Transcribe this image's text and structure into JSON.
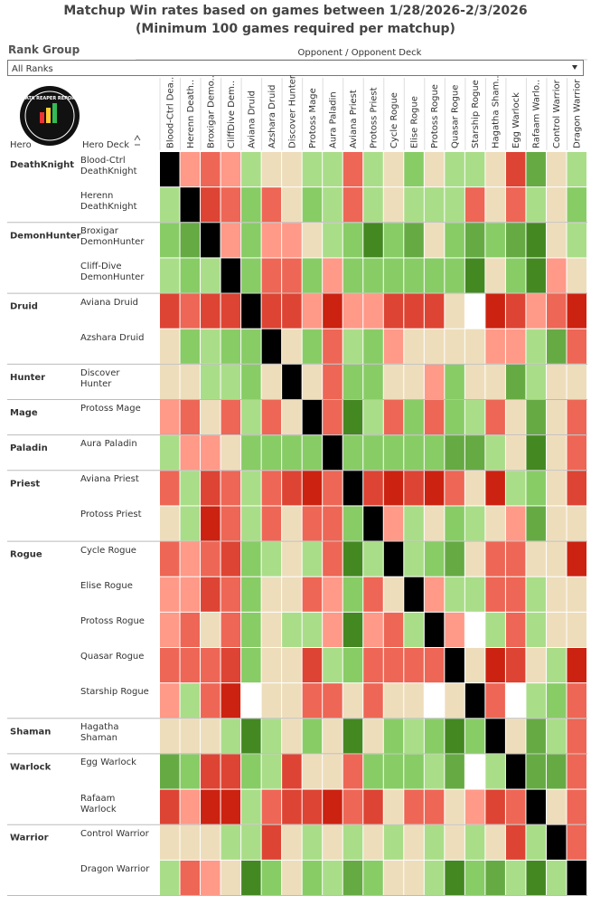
{
  "chart_data": {
    "type": "heatmap",
    "title": "Matchup Win rates based on games between 1/28/2026-2/3/2026",
    "subtitle": "(Minimum 100 games required per matchup)",
    "filter_label": "Rank Group",
    "filter_value": "All Ranks",
    "column_title": "Opponent / Opponent Deck",
    "row_header_hero": "Hero",
    "row_header_deck": "Hero Deck",
    "logo_text": "DATA REAPER REPORT",
    "columns": [
      "Blood-Ctrl Dea..",
      "Herenn Death..",
      "Broxigar Demo..",
      "CliffDive Dem..",
      "Aviana Druid",
      "Azshara Druid",
      "Discover Hunter",
      "Protoss Mage",
      "Aura Paladin",
      "Aviana Priest",
      "Protoss Priest",
      "Cycle Rogue",
      "Elise Rogue",
      "Protoss Rogue",
      "Quasar Rogue",
      "Starship Rogue",
      "Hagatha Sham..",
      "Egg Warlock",
      "Rafaam Warlo..",
      "Control Warrior",
      "Dragon Warrior"
    ],
    "groups": [
      {
        "hero": "DeathKnight",
        "decks": [
          "Blood-Ctrl DeathKnight",
          "Herenn DeathKnight"
        ]
      },
      {
        "hero": "DemonHunter",
        "decks": [
          "Broxigar DemonHunter",
          "Cliff-Dive DemonHunter"
        ]
      },
      {
        "hero": "Druid",
        "decks": [
          "Aviana Druid",
          "Azshara Druid"
        ]
      },
      {
        "hero": "Hunter",
        "decks": [
          "Discover Hunter"
        ]
      },
      {
        "hero": "Mage",
        "decks": [
          "Protoss Mage"
        ]
      },
      {
        "hero": "Paladin",
        "decks": [
          "Aura Paladin"
        ]
      },
      {
        "hero": "Priest",
        "decks": [
          "Aviana Priest",
          "Protoss Priest"
        ]
      },
      {
        "hero": "Rogue",
        "decks": [
          "Cycle Rogue",
          "Elise Rogue",
          "Protoss Rogue",
          "Quasar Rogue",
          "Starship Rogue"
        ]
      },
      {
        "hero": "Shaman",
        "decks": [
          "Hagatha Shaman"
        ]
      },
      {
        "hero": "Warlock",
        "decks": [
          "Egg Warlock",
          "Rafaam Warlock"
        ]
      },
      {
        "hero": "Warrior",
        "decks": [
          "Control Warrior",
          "Dragon Warrior"
        ]
      }
    ],
    "cells": [
      [
        "#000",
        "#f98",
        "#e65",
        "#f98",
        "#ad8",
        "#edb",
        "#edb",
        "#ad8",
        "#ad8",
        "#e65",
        "#ad8",
        "#edb",
        "#8c6",
        "#edb",
        "#ad8",
        "#ad8",
        "#edb",
        "#d43",
        "#6a4",
        "#edb",
        "#ad8"
      ],
      [
        "#ad8",
        "#000",
        "#d43",
        "#e65",
        "#8c6",
        "#e65",
        "#edb",
        "#8c6",
        "#ad8",
        "#e65",
        "#ad8",
        "#edb",
        "#ad8",
        "#ad8",
        "#ad8",
        "#e65",
        "#edb",
        "#e65",
        "#ad8",
        "#edb",
        "#8c6"
      ],
      [
        "#8c6",
        "#6a4",
        "#000",
        "#f98",
        "#8c6",
        "#f98",
        "#f98",
        "#edb",
        "#ad8",
        "#8c6",
        "#482",
        "#8c6",
        "#6a4",
        "#edb",
        "#8c6",
        "#6a4",
        "#8c6",
        "#6a4",
        "#482",
        "#edb",
        "#ad8"
      ],
      [
        "#ad8",
        "#8c6",
        "#ad8",
        "#000",
        "#8c6",
        "#e65",
        "#e65",
        "#8c6",
        "#f98",
        "#8c6",
        "#8c6",
        "#8c6",
        "#8c6",
        "#8c6",
        "#8c6",
        "#482",
        "#edb",
        "#8c6",
        "#482",
        "#f98",
        "#edb"
      ],
      [
        "#d43",
        "#e65",
        "#d43",
        "#d43",
        "#000",
        "#d43",
        "#d43",
        "#f98",
        "#c21",
        "#f98",
        "#f98",
        "#d43",
        "#d43",
        "#d43",
        "#edb",
        "#fff",
        "#c21",
        "#d43",
        "#f98",
        "#e65",
        "#c21"
      ],
      [
        "#edb",
        "#8c6",
        "#ad8",
        "#8c6",
        "#8c6",
        "#000",
        "#edb",
        "#8c6",
        "#e65",
        "#ad8",
        "#8c6",
        "#f98",
        "#edb",
        "#edb",
        "#edb",
        "#edb",
        "#f98",
        "#f98",
        "#ad8",
        "#6a4",
        "#e65"
      ],
      [
        "#edb",
        "#edb",
        "#ad8",
        "#ad8",
        "#8c6",
        "#edb",
        "#000",
        "#edb",
        "#e65",
        "#8c6",
        "#8c6",
        "#edb",
        "#edb",
        "#f98",
        "#8c6",
        "#edb",
        "#edb",
        "#6a4",
        "#ad8",
        "#edb",
        "#edb"
      ],
      [
        "#f98",
        "#e65",
        "#edb",
        "#e65",
        "#ad8",
        "#e65",
        "#edb",
        "#000",
        "#e65",
        "#482",
        "#ad8",
        "#e65",
        "#8c6",
        "#e65",
        "#8c6",
        "#ad8",
        "#e65",
        "#edb",
        "#6a4",
        "#edb",
        "#e65"
      ],
      [
        "#ad8",
        "#f98",
        "#f98",
        "#edb",
        "#8c6",
        "#8c6",
        "#8c6",
        "#8c6",
        "#000",
        "#8c6",
        "#8c6",
        "#8c6",
        "#8c6",
        "#8c6",
        "#6a4",
        "#6a4",
        "#ad8",
        "#edb",
        "#482",
        "#edb",
        "#e65"
      ],
      [
        "#e65",
        "#ad8",
        "#d43",
        "#e65",
        "#ad8",
        "#e65",
        "#d43",
        "#c21",
        "#e65",
        "#000",
        "#d43",
        "#c21",
        "#d43",
        "#c21",
        "#e65",
        "#edb",
        "#c21",
        "#ad8",
        "#8c6",
        "#edb",
        "#d43"
      ],
      [
        "#edb",
        "#ad8",
        "#c21",
        "#e65",
        "#ad8",
        "#e65",
        "#edb",
        "#e65",
        "#e65",
        "#8c6",
        "#000",
        "#f98",
        "#ad8",
        "#edb",
        "#8c6",
        "#ad8",
        "#edb",
        "#f98",
        "#6a4",
        "#edb",
        "#edb"
      ],
      [
        "#e65",
        "#f98",
        "#e65",
        "#d43",
        "#8c6",
        "#ad8",
        "#edb",
        "#ad8",
        "#e65",
        "#482",
        "#ad8",
        "#000",
        "#ad8",
        "#8c6",
        "#6a4",
        "#edb",
        "#e65",
        "#e65",
        "#edb",
        "#edb",
        "#c21"
      ],
      [
        "#f98",
        "#f98",
        "#d43",
        "#e65",
        "#8c6",
        "#edb",
        "#edb",
        "#e65",
        "#f98",
        "#8c6",
        "#e65",
        "#edb",
        "#000",
        "#f98",
        "#ad8",
        "#ad8",
        "#e65",
        "#e65",
        "#ad8",
        "#edb",
        "#edb"
      ],
      [
        "#f98",
        "#e65",
        "#edb",
        "#e65",
        "#8c6",
        "#edb",
        "#ad8",
        "#ad8",
        "#f98",
        "#482",
        "#f98",
        "#e65",
        "#ad8",
        "#000",
        "#f98",
        "#fff",
        "#ad8",
        "#e65",
        "#ad8",
        "#edb",
        "#edb"
      ],
      [
        "#e65",
        "#e65",
        "#e65",
        "#d43",
        "#8c6",
        "#edb",
        "#edb",
        "#d43",
        "#ad8",
        "#8c6",
        "#e65",
        "#e65",
        "#e65",
        "#e65",
        "#000",
        "#edb",
        "#c21",
        "#d43",
        "#edb",
        "#ad8",
        "#c21"
      ],
      [
        "#f98",
        "#ad8",
        "#e65",
        "#c21",
        "#fff",
        "#edb",
        "#edb",
        "#e65",
        "#e65",
        "#edb",
        "#e65",
        "#edb",
        "#edb",
        "#fff",
        "#edb",
        "#000",
        "#e65",
        "#fff",
        "#ad8",
        "#8c6",
        "#e65"
      ],
      [
        "#edb",
        "#edb",
        "#edb",
        "#ad8",
        "#482",
        "#ad8",
        "#edb",
        "#8c6",
        "#edb",
        "#482",
        "#edb",
        "#8c6",
        "#ad8",
        "#8c6",
        "#482",
        "#8c6",
        "#000",
        "#edb",
        "#6a4",
        "#ad8",
        "#e65"
      ],
      [
        "#6a4",
        "#8c6",
        "#d43",
        "#d43",
        "#8c6",
        "#ad8",
        "#d43",
        "#edb",
        "#edb",
        "#e65",
        "#8c6",
        "#8c6",
        "#8c6",
        "#ad8",
        "#6a4",
        "#fff",
        "#ad8",
        "#000",
        "#6a4",
        "#6a4",
        "#e65"
      ],
      [
        "#d43",
        "#f98",
        "#c21",
        "#c21",
        "#ad8",
        "#e65",
        "#d43",
        "#d43",
        "#c21",
        "#e65",
        "#d43",
        "#edb",
        "#e65",
        "#e65",
        "#edb",
        "#f98",
        "#d43",
        "#e65",
        "#000",
        "#edb",
        "#e65"
      ],
      [
        "#edb",
        "#edb",
        "#edb",
        "#ad8",
        "#ad8",
        "#d43",
        "#edb",
        "#ad8",
        "#edb",
        "#ad8",
        "#edb",
        "#ad8",
        "#edb",
        "#ad8",
        "#edb",
        "#ad8",
        "#edb",
        "#d43",
        "#ad8",
        "#000",
        "#e65"
      ],
      [
        "#ad8",
        "#e65",
        "#f98",
        "#edb",
        "#482",
        "#8c6",
        "#edb",
        "#8c6",
        "#ad8",
        "#6a4",
        "#8c6",
        "#edb",
        "#edb",
        "#ad8",
        "#482",
        "#8c6",
        "#6a4",
        "#ad8",
        "#482",
        "#ad8",
        "#000"
      ]
    ]
  }
}
